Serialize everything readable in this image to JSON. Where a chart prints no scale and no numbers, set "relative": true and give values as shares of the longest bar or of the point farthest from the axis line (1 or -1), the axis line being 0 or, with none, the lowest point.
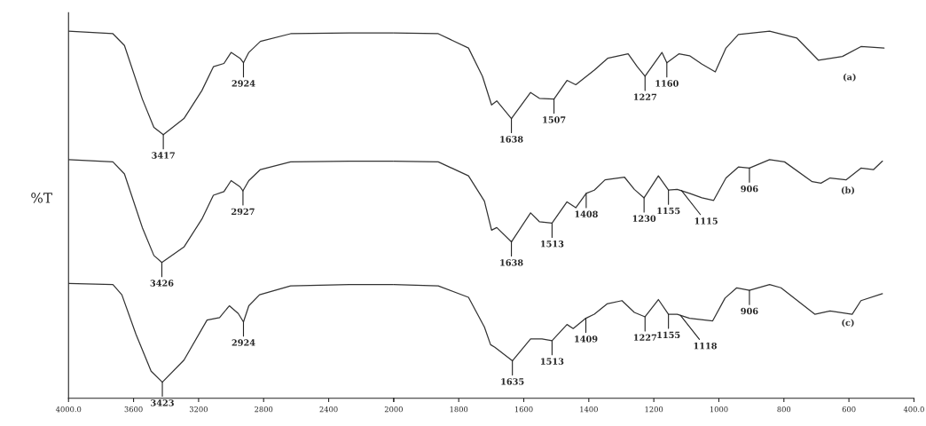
{
  "chart_data": [
    {
      "type": "line",
      "relative": true,
      "ylabel": "%T",
      "xlim": [
        4000,
        2000
      ],
      "grid": false,
      "legend": false,
      "xticks": [
        {
          "value": 4000,
          "label": "4000.0"
        },
        3600,
        3200,
        2800,
        2400,
        2000
      ],
      "marker": "none",
      "line_style": "solid",
      "series": [
        {
          "color": "#333333",
          "x": [
            4000,
            3727,
            3656,
            3546,
            3475,
            3417,
            3290,
            3180,
            3109,
            3044,
            3000,
            2945,
            2924,
            2891,
            2820,
            2634,
            2273,
            2000
          ],
          "values": [
            1.0,
            0.993,
            0.961,
            0.815,
            0.738,
            0.718,
            0.762,
            0.838,
            0.903,
            0.912,
            0.942,
            0.926,
            0.914,
            0.942,
            0.972,
            0.993,
            0.995,
            0.995
          ]
        },
        {
          "color": "#333333",
          "x": [
            4000,
            3727,
            3656,
            3546,
            3475,
            3426,
            3290,
            3180,
            3109,
            3044,
            3000,
            2945,
            2927,
            2891,
            2820,
            2634,
            2273,
            2000
          ],
          "values": [
            0.65,
            0.644,
            0.611,
            0.465,
            0.389,
            0.37,
            0.412,
            0.488,
            0.553,
            0.563,
            0.593,
            0.576,
            0.565,
            0.593,
            0.623,
            0.644,
            0.646,
            0.646
          ]
        },
        {
          "color": "#333333",
          "x": [
            4000,
            3727,
            3672,
            3585,
            3492,
            3423,
            3290,
            3148,
            3071,
            3011,
            2956,
            2924,
            2891,
            2825,
            2634,
            2273,
            2000
          ],
          "values": [
            0.313,
            0.31,
            0.282,
            0.174,
            0.074,
            0.044,
            0.104,
            0.213,
            0.22,
            0.252,
            0.231,
            0.208,
            0.252,
            0.282,
            0.306,
            0.31,
            0.31
          ]
        }
      ],
      "annotations": [
        {
          "text": "3417",
          "x": 3417,
          "y": 0.718
        },
        {
          "text": "2924",
          "x": 2924,
          "y": 0.914
        },
        {
          "text": "3426",
          "x": 3426,
          "y": 0.37
        },
        {
          "text": "2927",
          "x": 2927,
          "y": 0.565
        },
        {
          "text": "3423",
          "x": 3423,
          "y": 0.044
        },
        {
          "text": "2924",
          "x": 2924,
          "y": 0.208
        }
      ]
    },
    {
      "type": "line",
      "relative": true,
      "xlim": [
        2000,
        400
      ],
      "grid": false,
      "legend": false,
      "xticks": [
        {
          "value": 2000,
          "label": null
        },
        1800,
        1600,
        1400,
        1200,
        1000,
        800,
        600,
        {
          "value": 400,
          "label": "400.0"
        }
      ],
      "marker": "none",
      "line_style": "solid",
      "series": [
        {
          "name": "(a)",
          "color": "#333333",
          "x": [
            2000,
            1863,
            1770,
            1727,
            1699,
            1683,
            1638,
            1579,
            1552,
            1507,
            1467,
            1440,
            1383,
            1342,
            1279,
            1251,
            1227,
            1175,
            1160,
            1123,
            1090,
            1052,
            1011,
            978,
            940,
            844,
            760,
            694,
            620,
            563,
            492
          ],
          "values": [
            0.995,
            0.993,
            0.954,
            0.877,
            0.799,
            0.81,
            0.762,
            0.833,
            0.817,
            0.815,
            0.866,
            0.854,
            0.894,
            0.926,
            0.938,
            0.903,
            0.877,
            0.942,
            0.914,
            0.938,
            0.933,
            0.91,
            0.889,
            0.954,
            0.991,
            1.0,
            0.981,
            0.921,
            0.931,
            0.958,
            0.954
          ]
        },
        {
          "name": "(b)",
          "color": "#333333",
          "x": [
            2000,
            1863,
            1770,
            1721,
            1699,
            1683,
            1638,
            1579,
            1552,
            1513,
            1467,
            1440,
            1408,
            1383,
            1350,
            1290,
            1260,
            1230,
            1186,
            1155,
            1128,
            1090,
            1052,
            1016,
            978,
            940,
            906,
            844,
            798,
            713,
            686,
            658,
            609,
            563,
            524,
            497
          ],
          "values": [
            0.646,
            0.644,
            0.606,
            0.537,
            0.458,
            0.465,
            0.426,
            0.505,
            0.481,
            0.477,
            0.535,
            0.519,
            0.558,
            0.567,
            0.595,
            0.602,
            0.569,
            0.546,
            0.606,
            0.567,
            0.569,
            0.558,
            0.546,
            0.539,
            0.6,
            0.63,
            0.627,
            0.65,
            0.644,
            0.59,
            0.586,
            0.6,
            0.595,
            0.627,
            0.623,
            0.646
          ]
        },
        {
          "name": "(c)",
          "color": "#333333",
          "x": [
            2000,
            1863,
            1770,
            1721,
            1702,
            1689,
            1635,
            1579,
            1544,
            1513,
            1467,
            1448,
            1409,
            1383,
            1344,
            1298,
            1260,
            1227,
            1186,
            1155,
            1128,
            1090,
            1019,
            981,
            945,
            906,
            844,
            809,
            705,
            658,
            590,
            563,
            497
          ],
          "values": [
            0.31,
            0.306,
            0.275,
            0.194,
            0.146,
            0.139,
            0.102,
            0.162,
            0.162,
            0.157,
            0.201,
            0.19,
            0.218,
            0.229,
            0.257,
            0.266,
            0.234,
            0.222,
            0.269,
            0.229,
            0.229,
            0.218,
            0.211,
            0.273,
            0.301,
            0.294,
            0.31,
            0.301,
            0.229,
            0.238,
            0.229,
            0.266,
            0.285
          ]
        }
      ],
      "annotations": [
        {
          "text": "1638",
          "x": 1638,
          "y": 0.762
        },
        {
          "text": "1507",
          "x": 1507,
          "y": 0.815
        },
        {
          "text": "1227",
          "x": 1227,
          "y": 0.877
        },
        {
          "text": "1160",
          "x": 1160,
          "y": 0.914
        },
        {
          "text": "1638",
          "x": 1638,
          "y": 0.426
        },
        {
          "text": "1513",
          "x": 1513,
          "y": 0.477
        },
        {
          "text": "1408",
          "x": 1408,
          "y": 0.558
        },
        {
          "text": "1230",
          "x": 1230,
          "y": 0.546
        },
        {
          "text": "1155",
          "x": 1155,
          "y": 0.567
        },
        {
          "text": "1115",
          "x": 1115,
          "y": 0.566
        },
        {
          "text": "906",
          "x": 906,
          "y": 0.627
        },
        {
          "text": "1635",
          "x": 1635,
          "y": 0.102
        },
        {
          "text": "1513",
          "x": 1513,
          "y": 0.157
        },
        {
          "text": "1409",
          "x": 1409,
          "y": 0.218
        },
        {
          "text": "1227",
          "x": 1227,
          "y": 0.222
        },
        {
          "text": "1155",
          "x": 1155,
          "y": 0.229
        },
        {
          "text": "1118",
          "x": 1118,
          "y": 0.226
        },
        {
          "text": "906",
          "x": 906,
          "y": 0.294
        }
      ]
    }
  ]
}
